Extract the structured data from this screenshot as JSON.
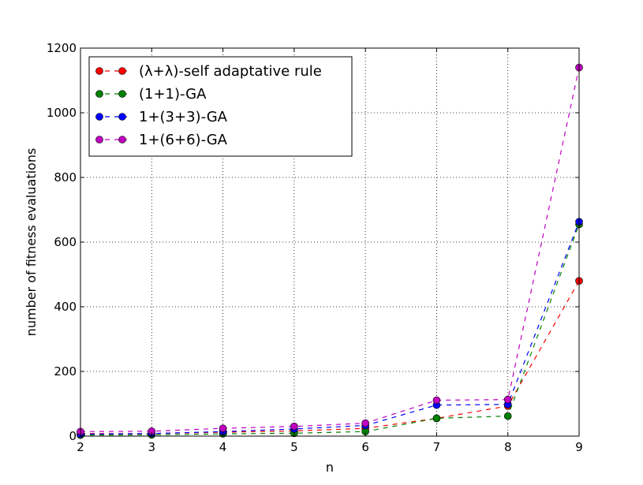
{
  "chart_data": {
    "type": "line",
    "title": "",
    "xlabel": "n",
    "ylabel": "number of fitness evaluations",
    "x": [
      2,
      3,
      4,
      5,
      6,
      7,
      8,
      9
    ],
    "xlim": [
      2,
      9
    ],
    "ylim": [
      0,
      1200
    ],
    "xticks": [
      2,
      3,
      4,
      5,
      6,
      7,
      8,
      9
    ],
    "yticks": [
      0,
      200,
      400,
      600,
      800,
      1000,
      1200
    ],
    "grid": true,
    "grid_style": "dotted",
    "line_style": "dashed",
    "marker": "circle",
    "legend_position": "top-left",
    "series": [
      {
        "name": "(λ+λ)-self adaptative rule",
        "color": "#ff0000",
        "values": [
          8,
          8,
          12,
          16,
          24,
          55,
          93,
          480
        ]
      },
      {
        "name": "(1+1)-GA",
        "color": "#008000",
        "values": [
          3,
          4,
          7,
          9,
          14,
          55,
          62,
          655
        ]
      },
      {
        "name": "1+(3+3)-GA",
        "color": "#0000ff",
        "values": [
          6,
          8,
          14,
          22,
          33,
          96,
          98,
          663
        ]
      },
      {
        "name": "1+(6+6)-GA",
        "color": "#bf00bf",
        "values": [
          14,
          15,
          24,
          30,
          40,
          111,
          113,
          1140
        ]
      }
    ]
  }
}
